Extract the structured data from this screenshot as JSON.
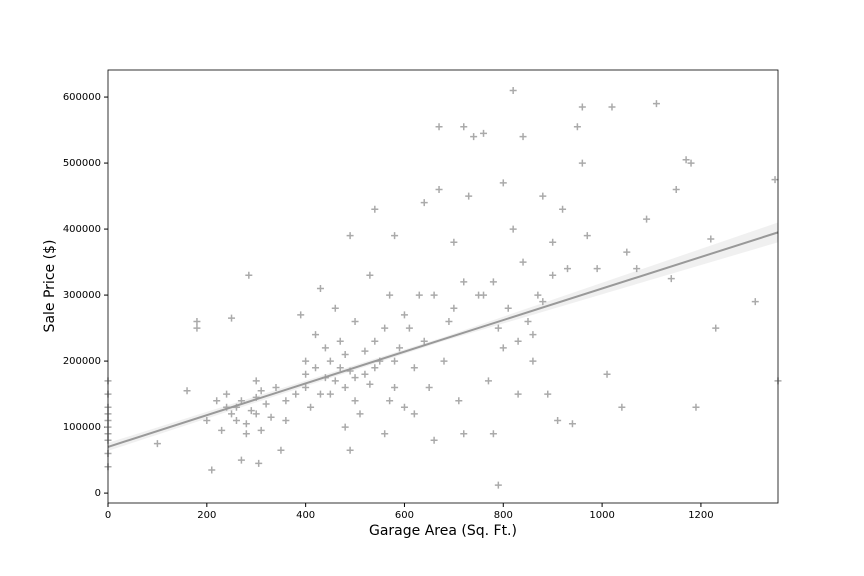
{
  "chart_data": {
    "type": "scatter",
    "xlabel": "Garage Area (Sq. Ft.)",
    "ylabel": "Sale Price ($)",
    "xlim": [
      0,
      1356
    ],
    "ylim": [
      -15000,
      641000
    ],
    "xticks": [
      0,
      200,
      400,
      600,
      800,
      1000,
      1200
    ],
    "yticks": [
      0,
      100000,
      200000,
      300000,
      400000,
      500000,
      600000
    ],
    "color": "#aaaaaa",
    "marker": "+",
    "x": [
      0,
      0,
      0,
      0,
      0,
      0,
      0,
      0,
      0,
      0,
      100,
      160,
      180,
      180,
      200,
      210,
      220,
      230,
      240,
      250,
      250,
      260,
      270,
      280,
      285,
      290,
      300,
      300,
      305,
      310,
      320,
      340,
      350,
      360,
      380,
      390,
      400,
      400,
      410,
      420,
      430,
      440,
      440,
      450,
      460,
      470,
      480,
      480,
      490,
      490,
      500,
      500,
      510,
      520,
      530,
      540,
      540,
      550,
      560,
      570,
      580,
      580,
      590,
      600,
      610,
      620,
      630,
      640,
      650,
      660,
      670,
      670,
      680,
      690,
      700,
      710,
      720,
      720,
      730,
      740,
      750,
      760,
      770,
      780,
      780,
      790,
      800,
      800,
      810,
      820,
      820,
      830,
      840,
      840,
      850,
      860,
      870,
      880,
      890,
      900,
      910,
      920,
      930,
      940,
      950,
      960,
      960,
      970,
      990,
      1010,
      1020,
      1040,
      1050,
      1070,
      1090,
      1110,
      1140,
      1150,
      1170,
      1180,
      1190,
      1220,
      1230,
      1310,
      1350,
      1356,
      240,
      260,
      270,
      280,
      300,
      310,
      330,
      360,
      400,
      420,
      430,
      450,
      460,
      470,
      480,
      490,
      500,
      520,
      530,
      540,
      560,
      570,
      580,
      600,
      620,
      640,
      660,
      700,
      720,
      760,
      790,
      830,
      860,
      880,
      900
    ],
    "values": [
      100000,
      130000,
      80000,
      150000,
      60000,
      120000,
      90000,
      40000,
      170000,
      110000,
      75000,
      155000,
      260000,
      250000,
      110000,
      35000,
      140000,
      95000,
      150000,
      120000,
      265000,
      130000,
      50000,
      105000,
      330000,
      125000,
      145000,
      170000,
      45000,
      95000,
      135000,
      160000,
      65000,
      110000,
      150000,
      270000,
      200000,
      180000,
      130000,
      240000,
      310000,
      175000,
      220000,
      150000,
      280000,
      190000,
      100000,
      210000,
      390000,
      65000,
      175000,
      260000,
      120000,
      180000,
      330000,
      430000,
      230000,
      200000,
      90000,
      300000,
      390000,
      160000,
      220000,
      130000,
      250000,
      190000,
      300000,
      440000,
      160000,
      80000,
      555000,
      460000,
      200000,
      260000,
      380000,
      140000,
      555000,
      90000,
      450000,
      540000,
      300000,
      545000,
      170000,
      320000,
      90000,
      12000,
      470000,
      220000,
      280000,
      610000,
      400000,
      150000,
      540000,
      350000,
      260000,
      200000,
      300000,
      450000,
      150000,
      380000,
      110000,
      430000,
      340000,
      105000,
      555000,
      585000,
      500000,
      390000,
      340000,
      180000,
      585000,
      130000,
      365000,
      340000,
      415000,
      590000,
      325000,
      460000,
      505000,
      500000,
      130000,
      385000,
      250000,
      290000,
      475000,
      170000,
      130000,
      110000,
      140000,
      90000,
      120000,
      155000,
      115000,
      140000,
      160000,
      190000,
      150000,
      200000,
      170000,
      230000,
      160000,
      185000,
      140000,
      215000,
      165000,
      190000,
      250000,
      140000,
      200000,
      270000,
      120000,
      230000,
      300000,
      280000,
      320000,
      300000,
      250000,
      230000,
      240000,
      290000,
      330000
    ],
    "fit": {
      "x": [
        0,
        678,
        1356
      ],
      "values": [
        70000,
        233000,
        395000
      ],
      "lower": [
        64000,
        230000,
        380000
      ],
      "upper": [
        76000,
        236000,
        410000
      ],
      "color": "#999999"
    }
  }
}
